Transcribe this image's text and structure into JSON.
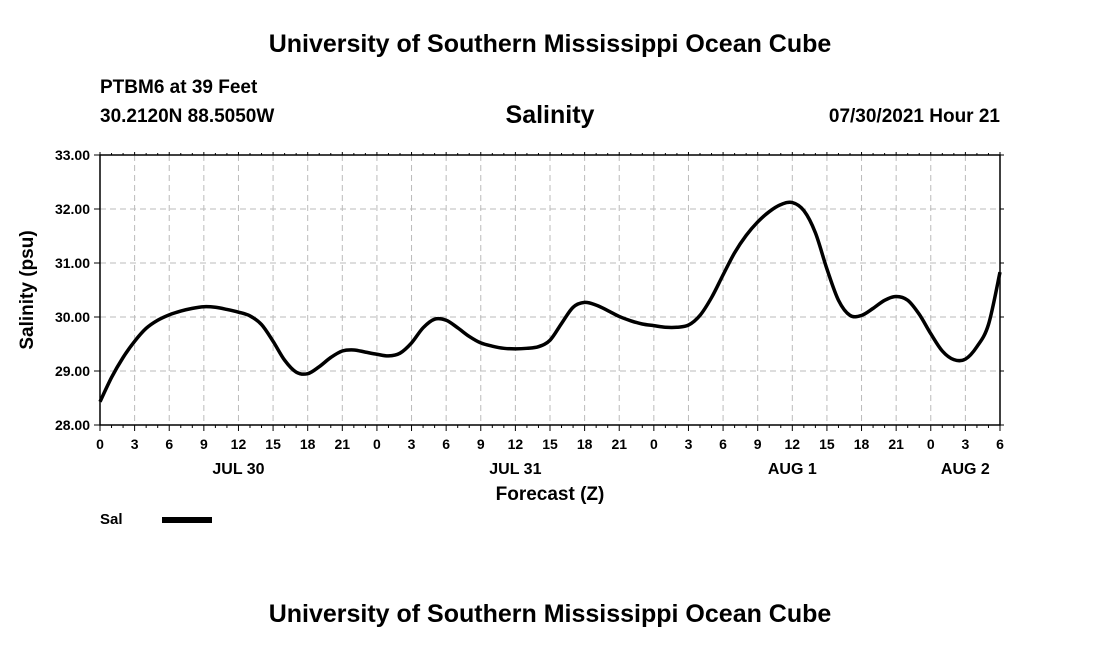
{
  "header": {
    "title": "University of Southern Mississippi Ocean Cube",
    "station": "PTBM6 at 39 Feet",
    "coords": "30.2120N  88.5050W",
    "datetime": "07/30/2021 Hour 21"
  },
  "footer": {
    "title": "University of Southern Mississippi Ocean Cube"
  },
  "legend": {
    "label": "Sal",
    "color": "#000000"
  },
  "chart_data": {
    "type": "line",
    "title": "Salinity",
    "xlabel": "Forecast (Z)",
    "ylabel": "Salinity (psu)",
    "xlim": [
      0,
      78
    ],
    "ylim": [
      28.0,
      33.0
    ],
    "grid": true,
    "line_color": "#000000",
    "grid_color": "#bbbbbb",
    "x_tick_values": [
      0,
      3,
      6,
      9,
      12,
      15,
      18,
      21,
      24,
      27,
      30,
      33,
      36,
      39,
      42,
      45,
      48,
      51,
      54,
      57,
      60,
      63,
      66,
      69,
      72,
      75,
      78
    ],
    "x_tick_labels": [
      "0",
      "3",
      "6",
      "9",
      "12",
      "15",
      "18",
      "21",
      "0",
      "3",
      "6",
      "9",
      "12",
      "15",
      "18",
      "21",
      "0",
      "3",
      "6",
      "9",
      "12",
      "15",
      "18",
      "21",
      "0",
      "3",
      "6"
    ],
    "y_ticks": [
      28.0,
      29.0,
      30.0,
      31.0,
      32.0,
      33.0
    ],
    "y_tick_labels": [
      "28.00",
      "29.00",
      "30.00",
      "31.00",
      "32.00",
      "33.00"
    ],
    "date_labels": [
      {
        "x": 12,
        "label": "JUL 30"
      },
      {
        "x": 36,
        "label": "JUL 31"
      },
      {
        "x": 60,
        "label": "AUG 1"
      },
      {
        "x": 75,
        "label": "AUG 2"
      }
    ],
    "series": [
      {
        "name": "Sal",
        "x": [
          0,
          1,
          2,
          3,
          4,
          5,
          6,
          7,
          8,
          9,
          10,
          11,
          12,
          13,
          14,
          15,
          16,
          17,
          18,
          19,
          20,
          21,
          22,
          23,
          24,
          25,
          26,
          27,
          28,
          29,
          30,
          31,
          32,
          33,
          34,
          35,
          36,
          37,
          38,
          39,
          40,
          41,
          42,
          43,
          44,
          45,
          46,
          47,
          48,
          49,
          50,
          51,
          52,
          53,
          54,
          55,
          56,
          57,
          58,
          59,
          60,
          61,
          62,
          63,
          64,
          65,
          66,
          67,
          68,
          69,
          70,
          71,
          72,
          73,
          74,
          75,
          76,
          77,
          78
        ],
        "y": [
          28.43,
          28.88,
          29.25,
          29.55,
          29.79,
          29.94,
          30.04,
          30.11,
          30.16,
          30.19,
          30.18,
          30.14,
          30.09,
          30.02,
          29.86,
          29.55,
          29.2,
          28.98,
          28.95,
          29.08,
          29.25,
          29.37,
          29.39,
          29.35,
          29.31,
          29.28,
          29.33,
          29.52,
          29.8,
          29.96,
          29.94,
          29.8,
          29.64,
          29.52,
          29.46,
          29.42,
          29.41,
          29.42,
          29.45,
          29.57,
          29.88,
          30.18,
          30.27,
          30.22,
          30.12,
          30.01,
          29.93,
          29.87,
          29.84,
          29.81,
          29.81,
          29.85,
          30.03,
          30.36,
          30.78,
          31.19,
          31.51,
          31.76,
          31.95,
          32.08,
          32.12,
          31.97,
          31.56,
          30.89,
          30.31,
          30.03,
          30.03,
          30.16,
          30.31,
          30.38,
          30.31,
          30.05,
          29.69,
          29.37,
          29.21,
          29.22,
          29.45,
          29.86,
          30.83
        ]
      }
    ]
  }
}
